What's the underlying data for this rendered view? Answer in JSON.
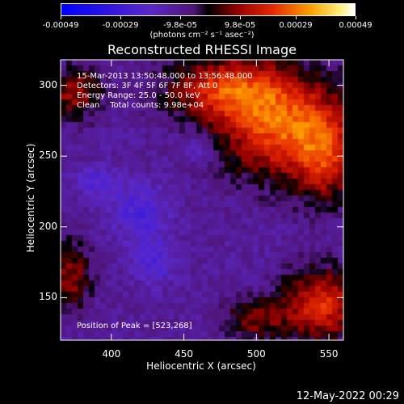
{
  "colorbar": {
    "ticks": [
      "-0.00049",
      "-0.00029",
      "-9.8e-05",
      "9.8e-05",
      "0.00029",
      "0.00049"
    ],
    "units": "(photons cm⁻² s⁻¹ asec⁻²)"
  },
  "annotations": {
    "time_range": "15-Mar-2013 13:50:48.000 to 13:56:48.000",
    "detectors": "Detectors: 3F 4F 5F 6F 7F 8F, Att 0",
    "energy": "Energy Range: 25.0 - 50.0 keV",
    "clean": "Clean    Total counts: 9.98e+04",
    "peak": "Position of Peak = [523,268]"
  },
  "timestamp": "12-May-2022 00:29",
  "chart_data": {
    "type": "heatmap",
    "title": "Reconstructed RHESSI Image",
    "xlabel": "Heliocentric X (arcsec)",
    "ylabel": "Heliocentric Y (arcsec)",
    "xlim": [
      365,
      560
    ],
    "ylim": [
      120,
      318
    ],
    "x_ticks": [
      400,
      450,
      500,
      550
    ],
    "y_ticks": [
      150,
      200,
      250,
      300
    ],
    "value_range": [
      -0.00049,
      0.00049
    ],
    "colormap": "blue-purple-red-yellow-white",
    "peak": {
      "x": 523,
      "y": 268
    },
    "hot_regions": [
      {
        "x": 520,
        "y": 270,
        "rx": 45,
        "ry": 35,
        "strength": 1.0
      },
      {
        "x": 480,
        "y": 298,
        "rx": 40,
        "ry": 22,
        "strength": 0.8
      },
      {
        "x": 548,
        "y": 245,
        "rx": 20,
        "ry": 30,
        "strength": 0.55
      },
      {
        "x": 375,
        "y": 295,
        "rx": 18,
        "ry": 18,
        "strength": 0.6
      },
      {
        "x": 372,
        "y": 165,
        "rx": 14,
        "ry": 25,
        "strength": 0.55
      },
      {
        "x": 545,
        "y": 145,
        "rx": 25,
        "ry": 25,
        "strength": 0.85
      },
      {
        "x": 500,
        "y": 135,
        "rx": 22,
        "ry": 15,
        "strength": 0.5
      }
    ],
    "cold_regions": [
      {
        "x": 420,
        "y": 210,
        "rx": 18,
        "ry": 20,
        "strength": 0.9
      },
      {
        "x": 430,
        "y": 175,
        "rx": 15,
        "ry": 15,
        "strength": 0.75
      },
      {
        "x": 390,
        "y": 232,
        "rx": 15,
        "ry": 10,
        "strength": 0.7
      },
      {
        "x": 460,
        "y": 255,
        "rx": 12,
        "ry": 10,
        "strength": 0.6
      }
    ]
  }
}
